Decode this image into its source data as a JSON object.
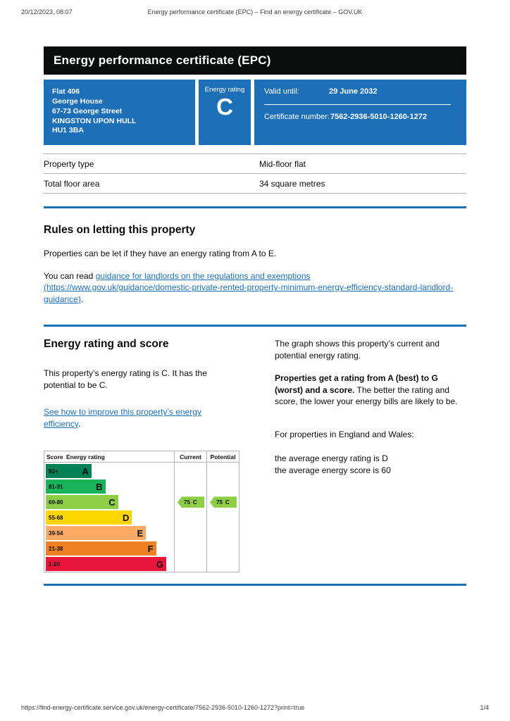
{
  "colors": {
    "govuk_blue": "#1d70b8",
    "border_grey": "#b1b4b6",
    "text_black": "#0b0c0c"
  },
  "print_header": {
    "datetime": "20/12/2023, 08:07",
    "title": "Energy performance certificate (EPC) – Find an energy certificate – GOV.UK"
  },
  "banner": {
    "title": "Energy performance certificate (EPC)"
  },
  "summary": {
    "address_lines": [
      "Flat 406",
      "George House",
      "67-73 George Street",
      "KINGSTON UPON HULL",
      "HU1 3BA"
    ],
    "energy_rating_label": "Energy rating",
    "energy_rating": "C",
    "valid_until_label": "Valid until:",
    "valid_until": "29 June 2032",
    "certificate_number_label": "Certificate number:",
    "certificate_number": "7562-2936-5010-1260-1272"
  },
  "property_details": {
    "rows": [
      {
        "label": "Property type",
        "value": "Mid-floor flat"
      },
      {
        "label": "Total floor area",
        "value": "34 square metres"
      }
    ]
  },
  "letting_rules": {
    "heading": "Rules on letting this property",
    "paragraph1": "Properties can be let if they have an energy rating from A to E.",
    "paragraph2_prefix": "You can read ",
    "link_text": "guidance for landlords on the regulations and exemptions (https://www.gov.uk/guidance/domestic-private-rented-property-minimum-energy-efficiency-standard-landlord-guidance)",
    "paragraph2_suffix": "."
  },
  "rating_section": {
    "heading": "Energy rating and score",
    "intro": "This property’s energy rating is C. It has the potential to be C.",
    "improve_link": "See how to improve this property’s energy efficiency",
    "improve_suffix": ".",
    "right": {
      "p1": "The graph shows this property’s current and potential energy rating.",
      "p2_bold": "Properties get a rating from A (best) to G (worst) and a score.",
      "p2_rest": " The better the rating and score, the lower your energy bills are likely to be.",
      "p3": "For properties in England and Wales:",
      "avg_rating_line": "the average energy rating is D",
      "avg_score_line": "the average energy score is 60"
    }
  },
  "chart_data": {
    "type": "bar",
    "subtype": "epc-rating-bands",
    "headers": {
      "score": "Score",
      "rating": "Energy rating",
      "current": "Current",
      "potential": "Potential"
    },
    "bands": [
      {
        "score": "92+",
        "letter": "A",
        "color": "#008054",
        "width_pct": 36
      },
      {
        "score": "81-91",
        "letter": "B",
        "color": "#19b459",
        "width_pct": 47
      },
      {
        "score": "69-80",
        "letter": "C",
        "color": "#8dce46",
        "width_pct": 57
      },
      {
        "score": "55-68",
        "letter": "D",
        "color": "#ffd500",
        "width_pct": 68
      },
      {
        "score": "39-54",
        "letter": "E",
        "color": "#fcaa65",
        "width_pct": 79
      },
      {
        "score": "21-38",
        "letter": "F",
        "color": "#ef8023",
        "width_pct": 87
      },
      {
        "score": "1-20",
        "letter": "G",
        "color": "#e9153b",
        "width_pct": 95
      }
    ],
    "current": {
      "value": "75",
      "letter": "C",
      "band_index": 2,
      "color": "#8dce46"
    },
    "potential": {
      "value": "75",
      "letter": "C",
      "band_index": 2,
      "color": "#8dce46"
    }
  },
  "print_footer": {
    "url": "https://find-energy-certificate.service.gov.uk/energy-certificate/7562-2936-5010-1260-1272?print=true",
    "page": "1/4"
  }
}
